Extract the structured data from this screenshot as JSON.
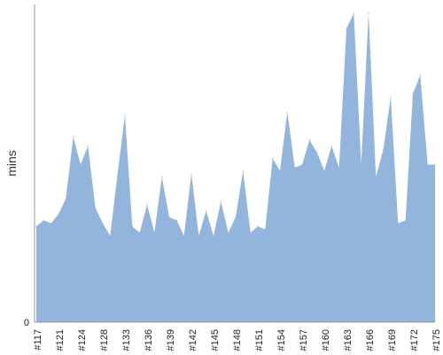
{
  "chart_data": {
    "type": "area",
    "title": "",
    "xlabel": "",
    "ylabel": "mins",
    "y_tick_labels": [
      "0"
    ],
    "ylim": [
      0,
      100
    ],
    "grid": false,
    "legend": "none",
    "color": "#92b4dd",
    "x_tick_labels": [
      "#117",
      "#121",
      "#124",
      "#128",
      "#133",
      "#136",
      "#139",
      "#142",
      "#145",
      "#148",
      "#151",
      "#154",
      "#157",
      "#160",
      "#163",
      "#166",
      "#169",
      "#172",
      "#175"
    ],
    "tick_every": 3,
    "series": [
      {
        "values": [
          31,
          33,
          32,
          35,
          40,
          60,
          51,
          57,
          37,
          32,
          28,
          48,
          67,
          31,
          29,
          38,
          29,
          47,
          34,
          33,
          28,
          48,
          28,
          36,
          28,
          39,
          29,
          34,
          49,
          29,
          31,
          30,
          53,
          49,
          68,
          50,
          51,
          59,
          55,
          49,
          57,
          50,
          95,
          100,
          51,
          100,
          47,
          56,
          73,
          32,
          33,
          74,
          80,
          51,
          51
        ]
      }
    ]
  }
}
